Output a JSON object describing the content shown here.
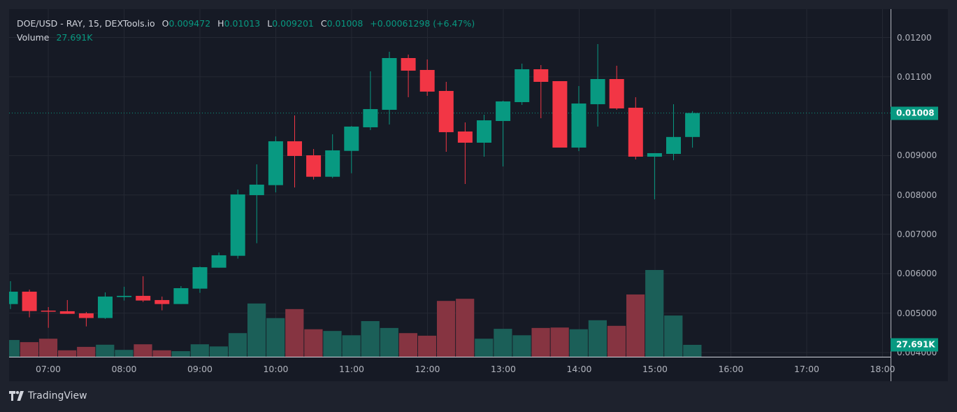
{
  "legend": {
    "symbol": "DOE/USD - RAY, 15, DEXTools.io",
    "open_label": "O",
    "open": "0.009472",
    "high_label": "H",
    "high": "0.01013",
    "low_label": "L",
    "low": "0.009201",
    "close_label": "C",
    "close": "0.01008",
    "change": "+0.00061298 (+6.47%)",
    "volume_label": "Volume",
    "volume": "27.691K"
  },
  "price_tag": "0.01008",
  "volume_tag": "27.691K",
  "branding": "TradingView",
  "colors": {
    "up": "#089981",
    "down": "#f23645",
    "up_volume": "#1b5f58",
    "down_volume": "#863441",
    "background": "#161a25",
    "grid": "#242833"
  },
  "chart_data": {
    "type": "candlestick",
    "interval_minutes": 15,
    "y_ticks": [
      "0.01200",
      "0.01100",
      "0.009000",
      "0.008000",
      "0.007000",
      "0.006000",
      "0.005000",
      "0.004000"
    ],
    "y_tick_values": [
      0.012,
      0.011,
      0.009,
      0.008,
      0.007,
      0.006,
      0.005,
      0.004
    ],
    "x_ticks": [
      "07:00",
      "08:00",
      "09:00",
      "10:00",
      "11:00",
      "12:00",
      "13:00",
      "14:00",
      "15:00",
      "16:00",
      "17:00",
      "18:00"
    ],
    "last_price": 0.01008,
    "grid": true,
    "candles": [
      {
        "time": "06:30",
        "o": 0.005229,
        "h": 0.00581,
        "l": 0.005105,
        "c": 0.005544,
        "v": 39
      },
      {
        "time": "06:45",
        "o": 0.005544,
        "h": 0.005597,
        "l": 0.004892,
        "c": 0.005052,
        "v": 34
      },
      {
        "time": "07:00",
        "o": 0.005062,
        "h": 0.005153,
        "l": 0.004626,
        "c": 0.005045,
        "v": 42
      },
      {
        "time": "07:15",
        "o": 0.005047,
        "h": 0.005331,
        "l": 0.004981,
        "c": 0.004981,
        "v": 15
      },
      {
        "time": "07:30",
        "o": 0.004994,
        "h": 0.005029,
        "l": 0.004662,
        "c": 0.004875,
        "v": 23
      },
      {
        "time": "07:45",
        "o": 0.004875,
        "h": 0.005526,
        "l": 0.004852,
        "c": 0.00542,
        "v": 28
      },
      {
        "time": "08:00",
        "o": 0.005408,
        "h": 0.005669,
        "l": 0.005319,
        "c": 0.005438,
        "v": 16
      },
      {
        "time": "08:15",
        "o": 0.005438,
        "h": 0.005935,
        "l": 0.005283,
        "c": 0.005319,
        "v": 29
      },
      {
        "time": "08:30",
        "o": 0.005331,
        "h": 0.00542,
        "l": 0.00507,
        "c": 0.00523,
        "v": 15
      },
      {
        "time": "08:45",
        "o": 0.00523,
        "h": 0.005686,
        "l": 0.00523,
        "c": 0.005633,
        "v": 13
      },
      {
        "time": "09:00",
        "o": 0.005621,
        "h": 0.006184,
        "l": 0.005514,
        "c": 0.006166,
        "v": 29
      },
      {
        "time": "09:15",
        "o": 0.006153,
        "h": 0.006539,
        "l": 0.006153,
        "c": 0.006468,
        "v": 24
      },
      {
        "time": "09:30",
        "o": 0.006455,
        "h": 0.008137,
        "l": 0.006384,
        "c": 0.008013,
        "v": 55
      },
      {
        "time": "09:45",
        "o": 0.007995,
        "h": 0.008777,
        "l": 0.006775,
        "c": 0.008262,
        "v": 124
      },
      {
        "time": "10:00",
        "o": 0.008249,
        "h": 0.009487,
        "l": 0.008066,
        "c": 0.009363,
        "v": 90
      },
      {
        "time": "10:15",
        "o": 0.009363,
        "h": 0.01002,
        "l": 0.00819,
        "c": 0.00899,
        "v": 111
      },
      {
        "time": "10:30",
        "o": 0.009007,
        "h": 0.009167,
        "l": 0.008391,
        "c": 0.008462,
        "v": 64
      },
      {
        "time": "10:45",
        "o": 0.008462,
        "h": 0.00954,
        "l": 0.008427,
        "c": 0.009132,
        "v": 60
      },
      {
        "time": "11:00",
        "o": 0.009119,
        "h": 0.00975,
        "l": 0.008551,
        "c": 0.009736,
        "v": 50
      },
      {
        "time": "11:15",
        "o": 0.009718,
        "h": 0.011139,
        "l": 0.009647,
        "c": 0.01018,
        "v": 83
      },
      {
        "time": "11:30",
        "o": 0.010162,
        "h": 0.011636,
        "l": 0.009789,
        "c": 0.011476,
        "v": 67
      },
      {
        "time": "11:45",
        "o": 0.011476,
        "h": 0.011565,
        "l": 0.010482,
        "c": 0.011156,
        "v": 55
      },
      {
        "time": "12:00",
        "o": 0.011174,
        "h": 0.011441,
        "l": 0.010517,
        "c": 0.010624,
        "v": 49
      },
      {
        "time": "12:15",
        "o": 0.010641,
        "h": 0.010872,
        "l": 0.009096,
        "c": 0.009594,
        "v": 130
      },
      {
        "time": "12:30",
        "o": 0.009611,
        "h": 0.009842,
        "l": 0.008279,
        "c": 0.009327,
        "v": 135
      },
      {
        "time": "12:45",
        "o": 0.009327,
        "h": 0.010038,
        "l": 0.008972,
        "c": 0.009895,
        "v": 42
      },
      {
        "time": "13:00",
        "o": 0.009878,
        "h": 0.010393,
        "l": 0.008723,
        "c": 0.010375,
        "v": 65
      },
      {
        "time": "13:15",
        "o": 0.010357,
        "h": 0.011334,
        "l": 0.010286,
        "c": 0.011192,
        "v": 50
      },
      {
        "time": "13:30",
        "o": 0.011192,
        "h": 0.011298,
        "l": 0.009949,
        "c": 0.010872,
        "v": 67
      },
      {
        "time": "13:45",
        "o": 0.01089,
        "h": 0.01089,
        "l": 0.009203,
        "c": 0.009203,
        "v": 68
      },
      {
        "time": "14:00",
        "o": 0.009203,
        "h": 0.010766,
        "l": 0.009114,
        "c": 0.010322,
        "v": 64
      },
      {
        "time": "14:15",
        "o": 0.010304,
        "h": 0.011831,
        "l": 0.009736,
        "c": 0.010943,
        "v": 85
      },
      {
        "time": "14:30",
        "o": 0.010943,
        "h": 0.011281,
        "l": 0.010162,
        "c": 0.010197,
        "v": 72
      },
      {
        "time": "14:45",
        "o": 0.010215,
        "h": 0.010482,
        "l": 0.008901,
        "c": 0.008972,
        "v": 145
      },
      {
        "time": "15:00",
        "o": 0.008972,
        "h": 0.009061,
        "l": 0.007889,
        "c": 0.009061,
        "v": 202
      },
      {
        "time": "15:15",
        "o": 0.009043,
        "h": 0.010304,
        "l": 0.008883,
        "c": 0.009472,
        "v": 96
      },
      {
        "time": "15:30",
        "o": 0.009472,
        "h": 0.01013,
        "l": 0.009201,
        "c": 0.01008,
        "v": 27.691
      }
    ],
    "volume_unit": "K"
  }
}
